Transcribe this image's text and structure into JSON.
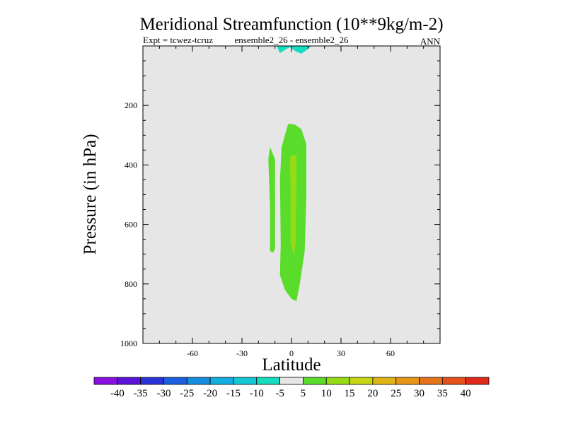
{
  "chart_data": {
    "type": "heatmap",
    "title": "Meridional Streamfunction (10**9kg/m-2)",
    "subtitle_left": "Expt = tcwez-tcruz",
    "subtitle_center": "ensemble2_26 - ensemble2_26",
    "subtitle_right": "ANN",
    "xlabel": "Latitude",
    "ylabel": "Pressure (in hPa)",
    "xlim": [
      -90,
      90
    ],
    "ylim": [
      1000,
      0
    ],
    "x_ticks": [
      -60,
      -30,
      0,
      30,
      60
    ],
    "x_tick_labels": [
      "-60",
      "-30",
      "0",
      "30",
      "60"
    ],
    "y_ticks": [
      200,
      400,
      600,
      800,
      1000
    ],
    "y_tick_labels": [
      "200",
      "400",
      "600",
      "800",
      "1000"
    ],
    "background_color": "#e6e6e6",
    "colorbar": {
      "labels": [
        "-40",
        "-35",
        "-30",
        "-25",
        "-20",
        "-15",
        "-10",
        "-5",
        "5",
        "10",
        "15",
        "20",
        "25",
        "30",
        "35",
        "40"
      ],
      "colors": [
        "#8a0fe0",
        "#5a14d8",
        "#2a33d6",
        "#1a5fde",
        "#168ee0",
        "#14aee0",
        "#16c8d6",
        "#16dcc0",
        "#e6e6e6",
        "#5add2a",
        "#96dc16",
        "#c8d616",
        "#e0b416",
        "#e69616",
        "#e6741a",
        "#e6501a",
        "#e02a1a"
      ]
    },
    "regions": [
      {
        "name": "upper-negative-lobes",
        "range": "-10 to -5",
        "color": "#16dcc0",
        "points": [
          [
            -9,
            0
          ],
          [
            12,
            0
          ],
          [
            9,
            15
          ],
          [
            6,
            26
          ],
          [
            3,
            20
          ],
          [
            -1,
            4
          ],
          [
            -3,
            10
          ],
          [
            -7,
            24
          ],
          [
            -8,
            12
          ]
        ]
      },
      {
        "name": "southern-positive-strip",
        "range": "5 to 10",
        "color": "#5add2a",
        "points": [
          [
            -13,
            340
          ],
          [
            -10,
            380
          ],
          [
            -10,
            680
          ],
          [
            -11,
            695
          ],
          [
            -13,
            690
          ],
          [
            -13,
            545
          ],
          [
            -14,
            380
          ]
        ]
      },
      {
        "name": "central-positive-cell",
        "range": "5 to 10",
        "color": "#5add2a",
        "points": [
          [
            -2,
            262
          ],
          [
            2,
            264
          ],
          [
            6,
            280
          ],
          [
            9,
            330
          ],
          [
            9,
            500
          ],
          [
            8,
            690
          ],
          [
            5,
            800
          ],
          [
            3,
            858
          ],
          [
            0,
            850
          ],
          [
            -4,
            820
          ],
          [
            -7,
            770
          ],
          [
            -6.5,
            660
          ],
          [
            -7,
            450
          ],
          [
            -6,
            340
          ]
        ]
      },
      {
        "name": "central-core",
        "range": "10 to 15",
        "color": "#96dc16",
        "points": [
          [
            0,
            365
          ],
          [
            3,
            370
          ],
          [
            3,
            450
          ],
          [
            2.5,
            660
          ],
          [
            1.5,
            705
          ],
          [
            -0.5,
            660
          ],
          [
            -0.5,
            480
          ],
          [
            -1,
            380
          ]
        ]
      }
    ]
  }
}
